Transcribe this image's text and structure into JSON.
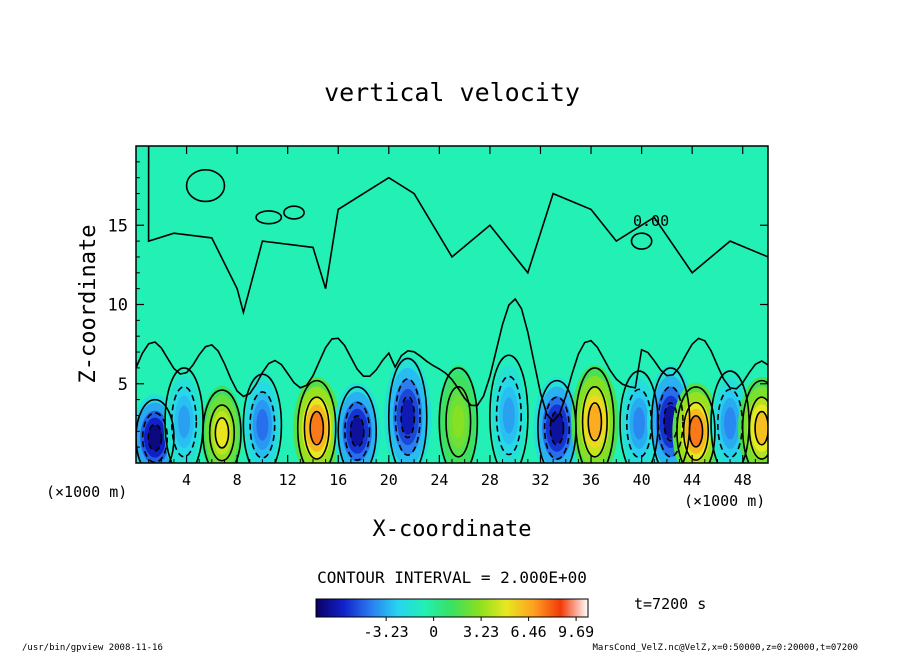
{
  "footer": {
    "left": "/usr/bin/gpview  2008-11-16",
    "right": "MarsCond_VelZ.nc@VelZ,x=0:50000,z=0:20000,t=07200"
  },
  "chart_data": {
    "type": "heatmap",
    "title": "vertical velocity",
    "xlabel": "X-coordinate",
    "ylabel": "Z-coordinate",
    "x_units_left": "(×1000 m)",
    "x_units_right": "(×1000 m)",
    "x_ticks": [
      4,
      8,
      12,
      16,
      20,
      24,
      28,
      32,
      36,
      40,
      44,
      48
    ],
    "y_ticks": [
      5,
      10,
      15
    ],
    "xlim": [
      0,
      50
    ],
    "ylim": [
      0,
      20
    ],
    "contour_interval": "CONTOUR INTERVAL = 2.000E+00",
    "contour_label": "0.00",
    "time_label": "t=7200 s",
    "colorbar": {
      "tick_labels": [
        "-3.23",
        "0",
        "3.23",
        "6.46",
        "9.69"
      ],
      "tick_values": [
        -3.23,
        0,
        3.23,
        6.46,
        9.69
      ],
      "range": [
        -8.0,
        10.5
      ],
      "colors": [
        "#0a0066",
        "#1020c8",
        "#2a7af0",
        "#27d4f0",
        "#22f0b4",
        "#3ae060",
        "#8ae020",
        "#e8e820",
        "#ffa020",
        "#f23a0a",
        "#ffffff"
      ]
    },
    "cells": [
      {
        "x": 1.5,
        "z": 1.6,
        "peak": -7.5
      },
      {
        "x": 3.8,
        "z": 2.6,
        "peak": -3.5
      },
      {
        "x": 6.8,
        "z": 1.9,
        "peak": 5.0
      },
      {
        "x": 10.0,
        "z": 2.4,
        "peak": -4.5
      },
      {
        "x": 14.3,
        "z": 2.2,
        "peak": 7.5
      },
      {
        "x": 17.5,
        "z": 2.0,
        "peak": -7.0
      },
      {
        "x": 21.5,
        "z": 2.9,
        "peak": -6.5
      },
      {
        "x": 25.5,
        "z": 2.6,
        "peak": 3.0
      },
      {
        "x": 29.5,
        "z": 3.0,
        "peak": -3.5
      },
      {
        "x": 33.3,
        "z": 2.2,
        "peak": -7.0
      },
      {
        "x": 36.3,
        "z": 2.6,
        "peak": 6.5
      },
      {
        "x": 39.8,
        "z": 2.5,
        "peak": -4.0
      },
      {
        "x": 42.3,
        "z": 2.6,
        "peak": -7.0
      },
      {
        "x": 44.3,
        "z": 2.0,
        "peak": 7.5
      },
      {
        "x": 47.0,
        "z": 2.5,
        "peak": -4.0
      },
      {
        "x": 49.5,
        "z": 2.2,
        "peak": 6.0
      }
    ]
  }
}
